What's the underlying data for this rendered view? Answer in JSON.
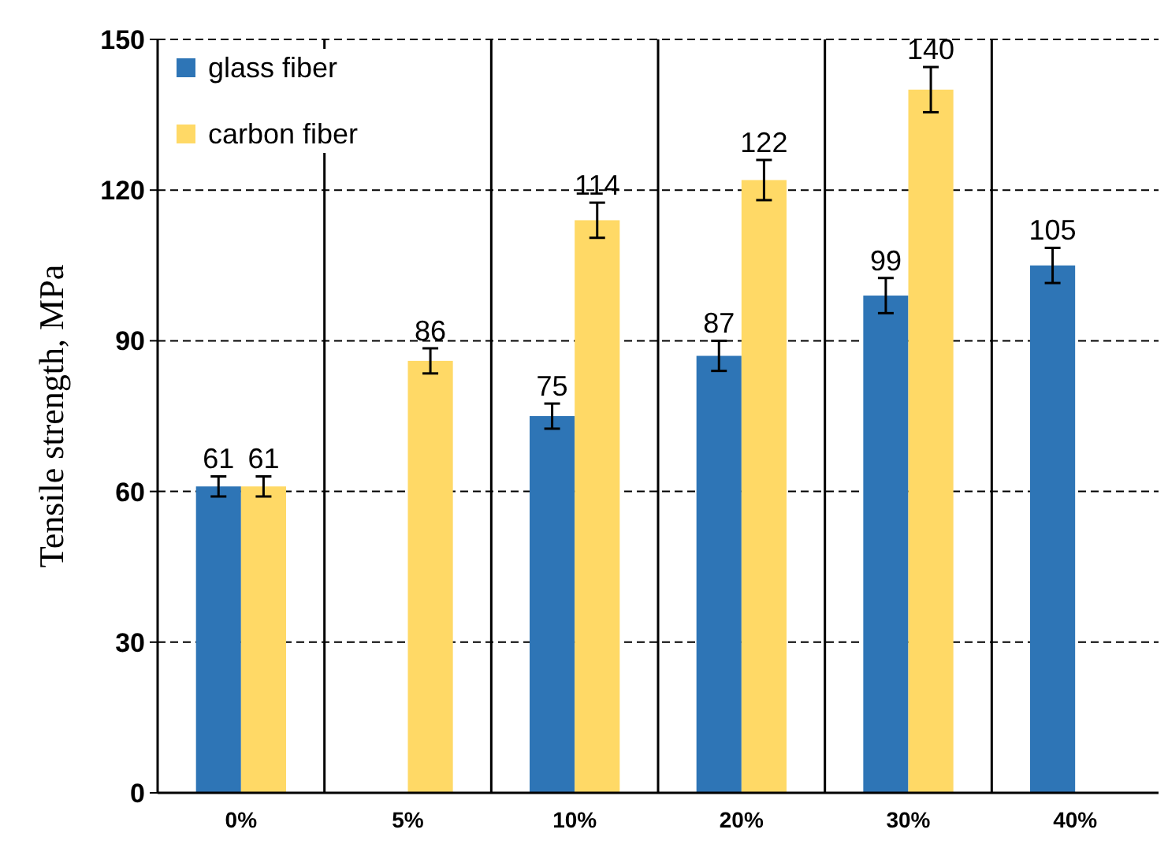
{
  "chart_data": {
    "type": "bar",
    "ylabel": "Tensile  strength,  MPa",
    "categories": [
      "0%",
      "5%",
      "10%",
      "20%",
      "30%",
      "40%"
    ],
    "series": [
      {
        "name": "glass fiber",
        "color": "#2e75b6",
        "values": [
          61,
          null,
          75,
          87,
          99,
          105
        ],
        "errors": [
          2,
          null,
          2.5,
          3,
          3.5,
          3.5
        ]
      },
      {
        "name": "carbon fiber",
        "color": "#ffd966",
        "values": [
          61,
          86,
          114,
          122,
          140,
          null
        ],
        "errors": [
          2,
          2.5,
          3.5,
          4,
          4.5,
          null
        ]
      }
    ],
    "ylim": [
      0,
      150
    ],
    "yticks": [
      0,
      30,
      60,
      90,
      120,
      150
    ],
    "grid": true,
    "legend": "top left",
    "data_labels": true
  }
}
